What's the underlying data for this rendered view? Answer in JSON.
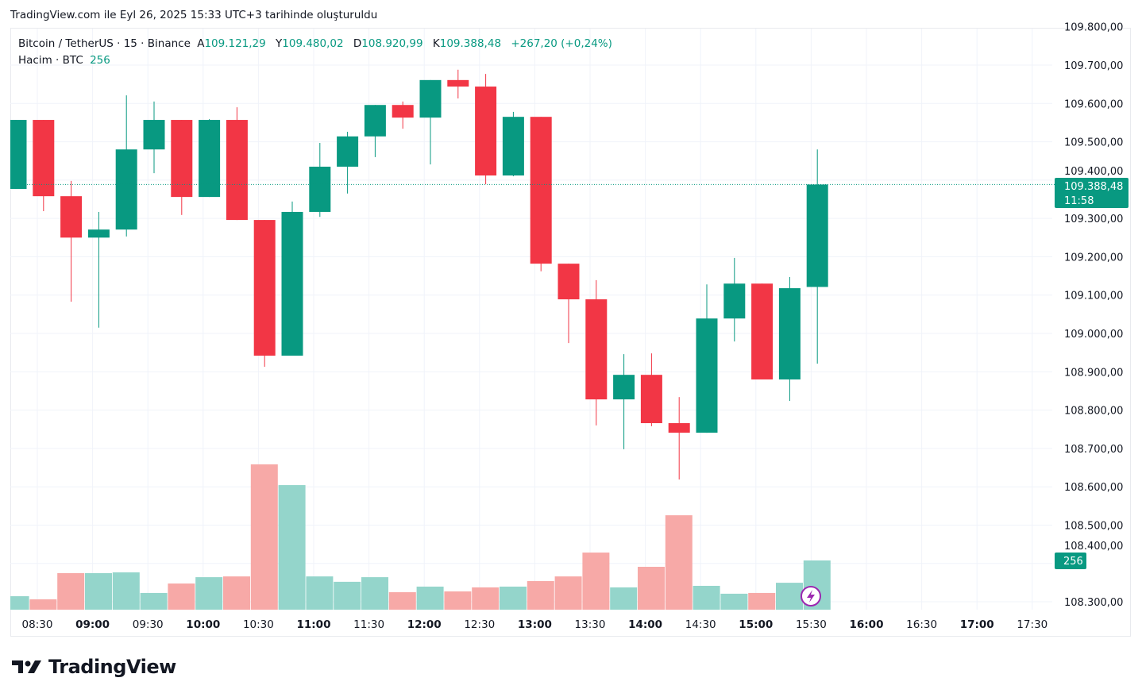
{
  "caption": "TradingView.com ile Eyl 26, 2025 15:33 UTC+3 tarihinde oluşturuldu",
  "legend": {
    "symbol": "Bitcoin / TetherUS · 15 · Binance",
    "open_label": "A",
    "open": "109.121,29",
    "high_label": "Y",
    "high": "109.480,02",
    "low_label": "D",
    "low": "108.920,99",
    "close_label": "K",
    "close": "109.388,48",
    "change": "+267,20 (+0,24%)",
    "volume_label": "Hacim · BTC",
    "volume": "256"
  },
  "price_label": {
    "price": "109.388,48",
    "countdown": "11:58",
    "value": 109388.48
  },
  "volume_label": "256",
  "logo_text": "TradingView",
  "colors": {
    "up": "#089981",
    "down": "#f23645",
    "up_vol": "#94d5cb",
    "down_vol": "#f7a9a7",
    "grid": "#f0f3fa",
    "text": "#131722"
  },
  "chart_data": {
    "type": "candlestick",
    "interval": "15",
    "y_ticks": [
      "109.800,00",
      "109.700,00",
      "109.600,00",
      "109.500,00",
      "109.400,00",
      "109.300,00",
      "109.200,00",
      "109.100,00",
      "109.000,00",
      "108.900,00",
      "108.800,00",
      "108.700,00",
      "108.600,00",
      "108.500,00",
      "108.400,00",
      "108.300,00"
    ],
    "y_tick_values": [
      109800,
      109700,
      109600,
      109500,
      109400,
      109300,
      109200,
      109100,
      109000,
      108900,
      108800,
      108700,
      108600,
      108500,
      108400,
      108300
    ],
    "x_ticks": [
      {
        "label": "08:30",
        "bold": false
      },
      {
        "label": "09:00",
        "bold": true
      },
      {
        "label": "09:30",
        "bold": false
      },
      {
        "label": "10:00",
        "bold": true
      },
      {
        "label": "10:30",
        "bold": false
      },
      {
        "label": "11:00",
        "bold": true
      },
      {
        "label": "11:30",
        "bold": false
      },
      {
        "label": "12:00",
        "bold": true
      },
      {
        "label": "12:30",
        "bold": false
      },
      {
        "label": "13:00",
        "bold": true
      },
      {
        "label": "13:30",
        "bold": false
      },
      {
        "label": "14:00",
        "bold": true
      },
      {
        "label": "14:30",
        "bold": false
      },
      {
        "label": "15:00",
        "bold": true
      },
      {
        "label": "15:30",
        "bold": false
      },
      {
        "label": "16:00",
        "bold": true
      },
      {
        "label": "16:30",
        "bold": false
      },
      {
        "label": "17:00",
        "bold": true
      },
      {
        "label": "17:30",
        "bold": false
      }
    ],
    "candles": [
      {
        "t": "08:15",
        "o": 109377,
        "h": 109557,
        "l": 109377,
        "c": 109557,
        "v": 70
      },
      {
        "t": "08:30",
        "o": 109557,
        "h": 109557,
        "l": 109319,
        "c": 109358,
        "v": 54
      },
      {
        "t": "08:45",
        "o": 109358,
        "h": 109398,
        "l": 109083,
        "c": 109250,
        "v": 190
      },
      {
        "t": "09:00",
        "o": 109250,
        "h": 109317,
        "l": 109015,
        "c": 109271,
        "v": 190
      },
      {
        "t": "09:15",
        "o": 109271,
        "h": 109621,
        "l": 109253,
        "c": 109480,
        "v": 194
      },
      {
        "t": "09:30",
        "o": 109480,
        "h": 109605,
        "l": 109418,
        "c": 109557,
        "v": 87
      },
      {
        "t": "09:45",
        "o": 109557,
        "h": 109557,
        "l": 109309,
        "c": 109356,
        "v": 136
      },
      {
        "t": "10:00",
        "o": 109356,
        "h": 109559,
        "l": 109356,
        "c": 109557,
        "v": 169
      },
      {
        "t": "10:15",
        "o": 109557,
        "h": 109590,
        "l": 109296,
        "c": 109296,
        "v": 173
      },
      {
        "t": "10:30",
        "o": 109296,
        "h": 109296,
        "l": 108913,
        "c": 108942,
        "v": 756
      },
      {
        "t": "10:45",
        "o": 108942,
        "h": 109344,
        "l": 108942,
        "c": 109317,
        "v": 648
      },
      {
        "t": "11:00",
        "o": 109317,
        "h": 109497,
        "l": 109304,
        "c": 109435,
        "v": 173
      },
      {
        "t": "11:15",
        "o": 109435,
        "h": 109526,
        "l": 109365,
        "c": 109514,
        "v": 145
      },
      {
        "t": "11:30",
        "o": 109514,
        "h": 109596,
        "l": 109460,
        "c": 109596,
        "v": 169
      },
      {
        "t": "11:45",
        "o": 109596,
        "h": 109605,
        "l": 109534,
        "c": 109563,
        "v": 91
      },
      {
        "t": "12:00",
        "o": 109563,
        "h": 109661,
        "l": 109441,
        "c": 109661,
        "v": 120
      },
      {
        "t": "12:15",
        "o": 109661,
        "h": 109688,
        "l": 109613,
        "c": 109644,
        "v": 95
      },
      {
        "t": "12:30",
        "o": 109644,
        "h": 109677,
        "l": 109389,
        "c": 109412,
        "v": 116
      },
      {
        "t": "12:45",
        "o": 109412,
        "h": 109578,
        "l": 109410,
        "c": 109565,
        "v": 120
      },
      {
        "t": "13:00",
        "o": 109565,
        "h": 109565,
        "l": 109162,
        "c": 109182,
        "v": 149
      },
      {
        "t": "13:15",
        "o": 109182,
        "h": 109182,
        "l": 108975,
        "c": 109089,
        "v": 173
      },
      {
        "t": "13:30",
        "o": 109089,
        "h": 109139,
        "l": 108760,
        "c": 108828,
        "v": 297
      },
      {
        "t": "13:45",
        "o": 108828,
        "h": 108946,
        "l": 108698,
        "c": 108892,
        "v": 116
      },
      {
        "t": "14:00",
        "o": 108892,
        "h": 108948,
        "l": 108758,
        "c": 108766,
        "v": 223
      },
      {
        "t": "14:15",
        "o": 108766,
        "h": 108834,
        "l": 108619,
        "c": 108741,
        "v": 491
      },
      {
        "t": "14:30",
        "o": 108741,
        "h": 109128,
        "l": 108741,
        "c": 109039,
        "v": 124
      },
      {
        "t": "14:45",
        "o": 109039,
        "h": 109197,
        "l": 108979,
        "c": 109130,
        "v": 83
      },
      {
        "t": "15:00",
        "o": 109130,
        "h": 109130,
        "l": 108880,
        "c": 108880,
        "v": 87
      },
      {
        "t": "15:15",
        "o": 108880,
        "h": 109147,
        "l": 108824,
        "c": 109118,
        "v": 140
      },
      {
        "t": "15:30",
        "o": 109121.29,
        "h": 109480.02,
        "l": 108920.99,
        "c": 109388.48,
        "v": 256
      }
    ]
  }
}
